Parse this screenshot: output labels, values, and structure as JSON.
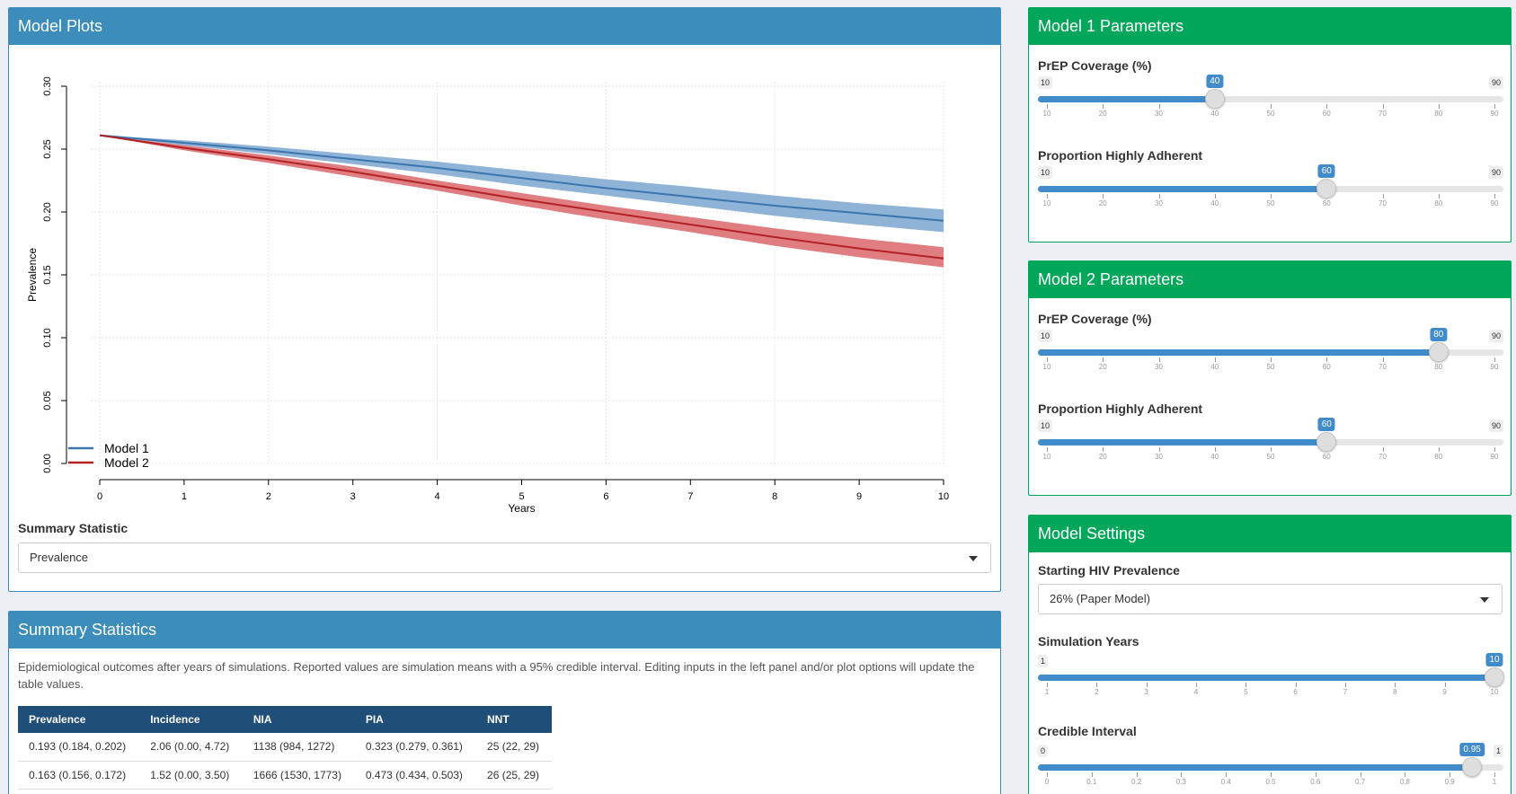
{
  "plot_box": {
    "title": "Model Plots"
  },
  "summary_statistic": {
    "label": "Summary Statistic",
    "value": "Prevalence"
  },
  "chart_data": {
    "type": "line",
    "xlabel": "Years",
    "ylabel": "Prevalence",
    "xlim": [
      0,
      10
    ],
    "ylim": [
      0,
      0.3
    ],
    "x_ticks": [
      "0",
      "1",
      "2",
      "3",
      "4",
      "5",
      "6",
      "7",
      "8",
      "9",
      "10"
    ],
    "y_ticks": [
      "0.00",
      "0.05",
      "0.10",
      "0.15",
      "0.20",
      "0.25",
      "0.30"
    ],
    "grid": true,
    "legend_position": "bottom-left",
    "x": [
      0,
      1,
      2,
      3,
      4,
      5,
      6,
      7,
      8,
      9,
      10
    ],
    "series": [
      {
        "name": "Model 1",
        "color": "#3a75ad",
        "band_color": "#7aa6cf",
        "values": [
          0.261,
          0.255,
          0.249,
          0.242,
          0.235,
          0.227,
          0.219,
          0.212,
          0.205,
          0.199,
          0.193
        ],
        "lower": [
          0.261,
          0.253,
          0.246,
          0.238,
          0.23,
          0.221,
          0.213,
          0.205,
          0.197,
          0.19,
          0.184
        ],
        "upper": [
          0.261,
          0.257,
          0.252,
          0.246,
          0.24,
          0.233,
          0.226,
          0.22,
          0.213,
          0.207,
          0.202
        ]
      },
      {
        "name": "Model 2",
        "color": "#b22222",
        "band_color": "#d9666b",
        "values": [
          0.261,
          0.251,
          0.242,
          0.232,
          0.221,
          0.21,
          0.2,
          0.19,
          0.18,
          0.171,
          0.163
        ],
        "lower": [
          0.261,
          0.249,
          0.239,
          0.228,
          0.217,
          0.205,
          0.194,
          0.184,
          0.173,
          0.164,
          0.156
        ],
        "upper": [
          0.261,
          0.253,
          0.245,
          0.236,
          0.225,
          0.215,
          0.205,
          0.196,
          0.187,
          0.179,
          0.172
        ]
      }
    ]
  },
  "stats_box": {
    "title": "Summary Statistics",
    "description": "Epidemiological outcomes after years of simulations. Reported values are simulation means with a 95% credible interval. Editing inputs in the left panel and/or plot options will update the table values.",
    "headers": [
      "Prevalence",
      "Incidence",
      "NIA",
      "PIA",
      "NNT"
    ],
    "rows": [
      [
        "0.193 (0.184, 0.202)",
        "2.06 (0.00, 4.72)",
        "1138 (984, 1272)",
        "0.323 (0.279, 0.361)",
        "25 (22, 29)"
      ],
      [
        "0.163 (0.156, 0.172)",
        "1.52 (0.00, 3.50)",
        "1666 (1530, 1773)",
        "0.473 (0.434, 0.503)",
        "26 (25, 29)"
      ]
    ]
  },
  "model1": {
    "title": "Model 1 Parameters",
    "coverage": {
      "label": "PrEP Coverage (%)",
      "min": 10,
      "max": 90,
      "value": 40,
      "min_label": "10",
      "max_label": "90",
      "value_label": "40",
      "ticks": [
        "10",
        "20",
        "30",
        "40",
        "50",
        "60",
        "70",
        "80",
        "90"
      ]
    },
    "adherence": {
      "label": "Proportion Highly Adherent",
      "min": 10,
      "max": 90,
      "value": 60,
      "min_label": "10",
      "max_label": "90",
      "value_label": "60",
      "ticks": [
        "10",
        "20",
        "30",
        "40",
        "50",
        "60",
        "70",
        "80",
        "90"
      ]
    }
  },
  "model2": {
    "title": "Model 2 Parameters",
    "coverage": {
      "label": "PrEP Coverage (%)",
      "min": 10,
      "max": 90,
      "value": 80,
      "min_label": "10",
      "max_label": "90",
      "value_label": "80",
      "ticks": [
        "10",
        "20",
        "30",
        "40",
        "50",
        "60",
        "70",
        "80",
        "90"
      ]
    },
    "adherence": {
      "label": "Proportion Highly Adherent",
      "min": 10,
      "max": 90,
      "value": 60,
      "min_label": "10",
      "max_label": "90",
      "value_label": "60",
      "ticks": [
        "10",
        "20",
        "30",
        "40",
        "50",
        "60",
        "70",
        "80",
        "90"
      ]
    }
  },
  "settings": {
    "title": "Model Settings",
    "starting_prevalence": {
      "label": "Starting HIV Prevalence",
      "value": "26% (Paper Model)"
    },
    "sim_years": {
      "label": "Simulation Years",
      "min": 1,
      "max": 10,
      "value": 10,
      "min_label": "1",
      "max_label": "",
      "value_label": "10",
      "ticks": [
        "1",
        "2",
        "3",
        "4",
        "5",
        "6",
        "7",
        "8",
        "9",
        "10"
      ]
    },
    "credible_interval": {
      "label": "Credible Interval",
      "min": 0,
      "max": 1,
      "value": 0.95,
      "min_label": "0",
      "max_label": "1",
      "value_label": "0.95",
      "ticks": [
        "0",
        "0.1",
        "0.2",
        "0.3",
        "0.4",
        "0.5",
        "0.6",
        "0.7",
        "0.8",
        "0.9",
        "1"
      ]
    }
  }
}
